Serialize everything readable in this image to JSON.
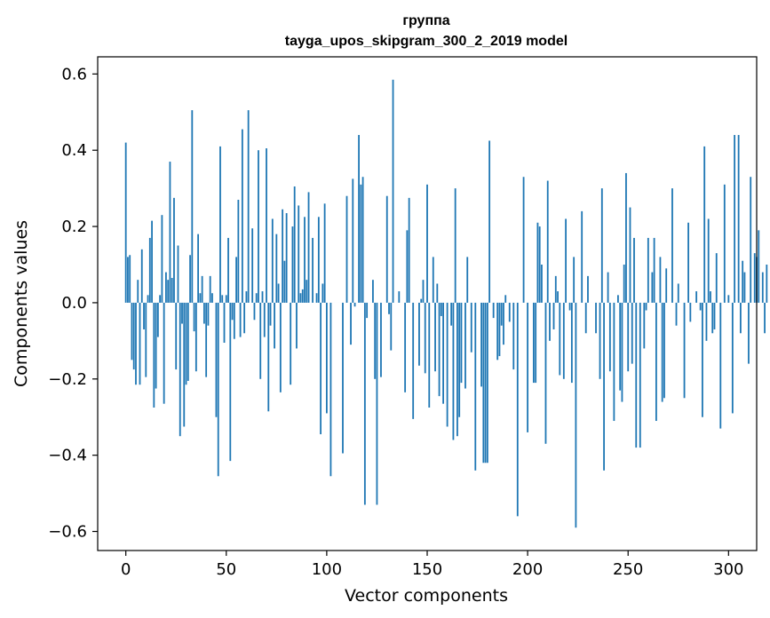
{
  "chart_data": {
    "type": "bar",
    "title_lines": [
      "группа",
      "tayga_upos_skipgram_300_2_2019 model"
    ],
    "xlabel": "Vector components",
    "ylabel": "Components values",
    "xlim": [
      -14,
      314
    ],
    "ylim": [
      -0.65,
      0.645
    ],
    "xticks": [
      0,
      50,
      100,
      150,
      200,
      250,
      300
    ],
    "xtick_labels": [
      "0",
      "50",
      "100",
      "150",
      "200",
      "250",
      "300"
    ],
    "yticks": [
      -0.6,
      -0.4,
      -0.2,
      0.0,
      0.2,
      0.4,
      0.6
    ],
    "ytick_labels": [
      "−0.6",
      "−0.4",
      "−0.2",
      "0.0",
      "0.2",
      "0.4",
      "0.6"
    ],
    "bar_color": "#1f77b4",
    "grid": false,
    "x_start": 0,
    "values": [
      0.42,
      0.12,
      0.125,
      -0.15,
      -0.175,
      -0.215,
      0.06,
      -0.215,
      0.14,
      -0.07,
      -0.195,
      0.02,
      0.17,
      0.215,
      -0.275,
      -0.225,
      -0.09,
      0.02,
      0.23,
      -0.265,
      0.08,
      0.06,
      0.37,
      0.065,
      0.275,
      -0.175,
      0.15,
      -0.35,
      -0.055,
      -0.325,
      -0.215,
      -0.205,
      0.125,
      0.505,
      -0.075,
      -0.18,
      0.18,
      0.025,
      0.07,
      -0.055,
      -0.195,
      -0.06,
      0.07,
      0.025,
      0.0,
      -0.3,
      -0.455,
      0.41,
      0.02,
      -0.105,
      0.02,
      0.17,
      -0.415,
      -0.045,
      -0.095,
      0.12,
      0.27,
      -0.09,
      0.455,
      -0.08,
      0.03,
      0.505,
      0.0,
      0.195,
      -0.045,
      0.025,
      0.4,
      -0.2,
      0.03,
      -0.09,
      0.405,
      -0.285,
      -0.06,
      0.22,
      -0.12,
      0.18,
      0.05,
      -0.235,
      0.245,
      0.11,
      0.235,
      0.0,
      -0.215,
      0.2,
      0.305,
      -0.12,
      0.255,
      0.025,
      0.035,
      0.225,
      0.06,
      0.29,
      0.0,
      0.17,
      0.0,
      0.025,
      0.225,
      -0.345,
      0.05,
      0.26,
      -0.29,
      0.0,
      -0.455,
      0.0,
      0.0,
      0.0,
      0.0,
      0.0,
      -0.395,
      0.0,
      0.28,
      0.0,
      -0.11,
      0.325,
      -0.01,
      0.0,
      0.44,
      0.31,
      0.33,
      -0.53,
      -0.04,
      0.0,
      0.0,
      0.06,
      -0.2,
      -0.53,
      0.0,
      -0.195,
      0.0,
      0.0,
      0.28,
      -0.03,
      -0.125,
      0.585,
      0.0,
      0.0,
      0.03,
      0.0,
      0.0,
      -0.235,
      0.19,
      0.275,
      0.0,
      -0.305,
      0.0,
      0.0,
      -0.165,
      0.01,
      0.06,
      -0.185,
      0.31,
      -0.275,
      0.0,
      0.12,
      -0.18,
      0.05,
      -0.245,
      -0.035,
      -0.265,
      0.0,
      -0.325,
      0.0,
      -0.06,
      -0.36,
      0.3,
      -0.35,
      -0.3,
      -0.21,
      0.0,
      -0.225,
      0.12,
      0.0,
      -0.13,
      0.0,
      -0.44,
      0.0,
      0.0,
      -0.22,
      -0.42,
      -0.42,
      -0.42,
      0.425,
      0.0,
      -0.04,
      0.0,
      -0.15,
      -0.14,
      -0.06,
      -0.11,
      0.02,
      0.0,
      -0.05,
      0.0,
      -0.175,
      0.0,
      -0.56,
      0.0,
      0.0,
      0.33,
      0.0,
      -0.34,
      0.0,
      0.0,
      -0.21,
      -0.21,
      0.21,
      0.2,
      0.1,
      0.0,
      -0.37,
      0.32,
      -0.1,
      0.0,
      -0.07,
      0.07,
      0.03,
      -0.19,
      0.0,
      -0.2,
      0.22,
      0.0,
      -0.02,
      -0.21,
      0.12,
      -0.59,
      0.0,
      0.0,
      0.24,
      0.0,
      -0.08,
      0.07,
      0.0,
      0.0,
      0.0,
      -0.08,
      0.0,
      -0.2,
      0.3,
      -0.44,
      0.0,
      0.08,
      -0.18,
      0.0,
      -0.31,
      0.0,
      0.02,
      -0.23,
      -0.26,
      0.1,
      0.34,
      -0.18,
      0.25,
      -0.16,
      0.17,
      -0.38,
      0.0,
      -0.38,
      0.0,
      -0.12,
      -0.02,
      0.17,
      0.0,
      0.08,
      0.17,
      -0.31,
      0.0,
      0.12,
      -0.26,
      -0.25,
      0.09,
      0.0,
      0.0,
      0.3,
      0.0,
      -0.06,
      0.05,
      0.0,
      0.0,
      -0.25,
      0.0,
      0.21,
      -0.05,
      0.0,
      0.0,
      0.03,
      0.0,
      -0.02,
      -0.3,
      0.41,
      -0.1,
      0.22,
      0.03,
      -0.08,
      -0.07,
      0.13,
      0.0,
      -0.33,
      0.0,
      0.31,
      0.0,
      0.02,
      0.0,
      -0.29,
      0.44,
      0.0,
      0.44,
      -0.08,
      0.11,
      0.08,
      0.0,
      -0.16,
      0.33,
      0.0,
      0.13,
      0.12,
      0.19,
      0.0,
      0.08,
      -0.08,
      0.1
    ]
  }
}
